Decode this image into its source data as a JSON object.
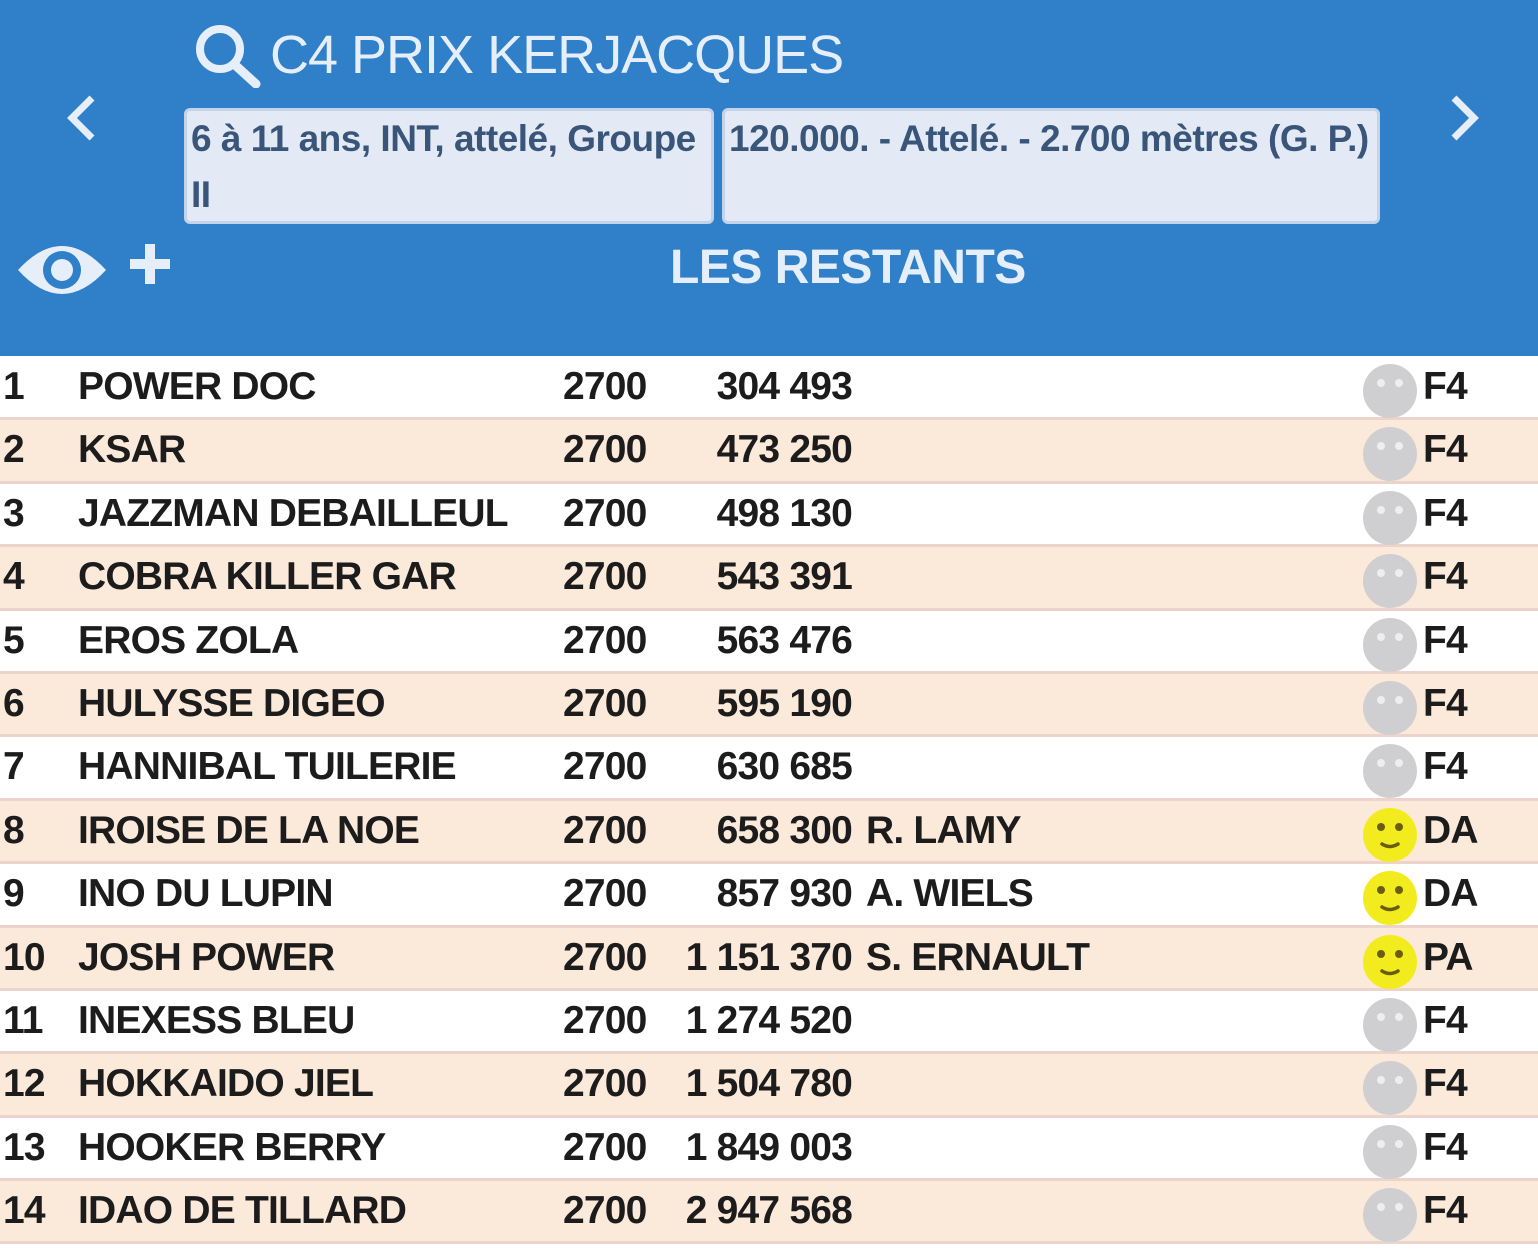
{
  "header": {
    "title": "C4 PRIX KERJACQUES",
    "conditions": "6 à 11 ans, INT, attelé, Groupe II",
    "details": "120.000. - Attelé. - 2.700 mètres (G. P.)",
    "subtitle": "LES RESTANTS",
    "color": "#2f80c9"
  },
  "runners": [
    {
      "num": "1",
      "name": "POWER DOC",
      "dist": "2700",
      "earn": "304 493",
      "driver": "",
      "mood": "neutral",
      "code": "F4"
    },
    {
      "num": "2",
      "name": "KSAR",
      "dist": "2700",
      "earn": "473 250",
      "driver": "",
      "mood": "neutral",
      "code": "F4"
    },
    {
      "num": "3",
      "name": "JAZZMAN DEBAILLEUL",
      "dist": "2700",
      "earn": "498 130",
      "driver": "",
      "mood": "neutral",
      "code": "F4"
    },
    {
      "num": "4",
      "name": "COBRA KILLER GAR",
      "dist": "2700",
      "earn": "543 391",
      "driver": "",
      "mood": "neutral",
      "code": "F4"
    },
    {
      "num": "5",
      "name": "EROS ZOLA",
      "dist": "2700",
      "earn": "563 476",
      "driver": "",
      "mood": "neutral",
      "code": "F4"
    },
    {
      "num": "6",
      "name": "HULYSSE DIGEO",
      "dist": "2700",
      "earn": "595 190",
      "driver": "",
      "mood": "neutral",
      "code": "F4"
    },
    {
      "num": "7",
      "name": "HANNIBAL TUILERIE",
      "dist": "2700",
      "earn": "630 685",
      "driver": "",
      "mood": "neutral",
      "code": "F4"
    },
    {
      "num": "8",
      "name": "IROISE DE LA NOE",
      "dist": "2700",
      "earn": "658 300",
      "driver": "R. LAMY",
      "mood": "happy",
      "code": "DA"
    },
    {
      "num": "9",
      "name": "INO DU LUPIN",
      "dist": "2700",
      "earn": "857 930",
      "driver": "A. WIELS",
      "mood": "happy",
      "code": "DA"
    },
    {
      "num": "10",
      "name": "JOSH POWER",
      "dist": "2700",
      "earn": "1 151 370",
      "driver": "S. ERNAULT",
      "mood": "happy",
      "code": "PA"
    },
    {
      "num": "11",
      "name": "INEXESS BLEU",
      "dist": "2700",
      "earn": "1 274 520",
      "driver": "",
      "mood": "neutral",
      "code": "F4"
    },
    {
      "num": "12",
      "name": "HOKKAIDO JIEL",
      "dist": "2700",
      "earn": "1 504 780",
      "driver": "",
      "mood": "neutral",
      "code": "F4"
    },
    {
      "num": "13",
      "name": "HOOKER BERRY",
      "dist": "2700",
      "earn": "1 849 003",
      "driver": "",
      "mood": "neutral",
      "code": "F4"
    },
    {
      "num": "14",
      "name": "IDAO DE TILLARD",
      "dist": "2700",
      "earn": "2 947 568",
      "driver": "",
      "mood": "neutral",
      "code": "F4"
    }
  ],
  "icons": {
    "happy_color": "#f2ec1e",
    "neutral_color": "#cfcfd1"
  }
}
